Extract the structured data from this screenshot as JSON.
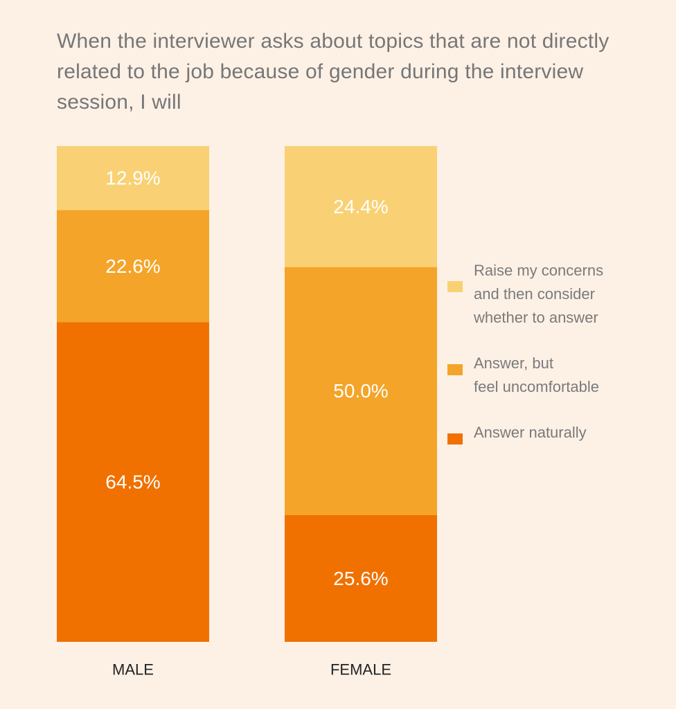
{
  "chart_data": {
    "type": "bar",
    "stacked": true,
    "normalized_percent": true,
    "title": "When the interviewer asks about topics that are not directly related to the job because of gender during the interview session, I will",
    "categories": [
      "MALE",
      "FEMALE"
    ],
    "series": [
      {
        "name": "Answer naturally",
        "values": [
          64.5,
          25.6
        ],
        "labels": [
          "64.5%",
          "25.6%"
        ],
        "color": "#f07000"
      },
      {
        "name": "Answer, but\nfeel uncomfortable",
        "values": [
          22.6,
          50.0
        ],
        "labels": [
          "22.6%",
          "50.0%"
        ],
        "color": "#f4a428"
      },
      {
        "name": "Raise my concerns\nand then consider\nwhether to answer",
        "values": [
          12.9,
          24.4
        ],
        "labels": [
          "12.9%",
          "24.4%"
        ],
        "color": "#f9d174"
      }
    ],
    "ylim": [
      0,
      100
    ],
    "legend_position": "right",
    "legend_order": [
      2,
      1,
      0
    ],
    "grid": false
  },
  "colors": {
    "background": "#fdf1e6",
    "title_text": "#767676",
    "segment_text": "#ffffff"
  }
}
